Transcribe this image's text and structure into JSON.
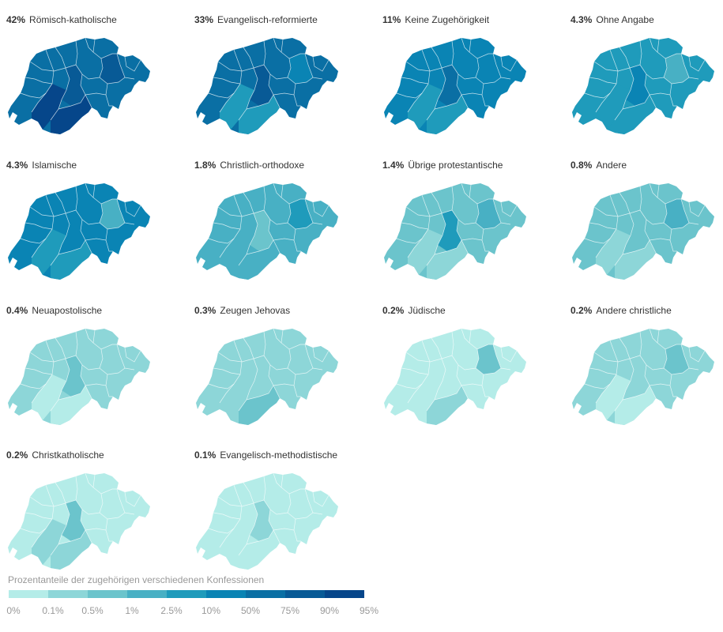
{
  "palette": {
    "c0": "#b4ece8",
    "c1": "#8dd6d8",
    "c2": "#6bc4cc",
    "c3": "#48b0c4",
    "c4": "#1f9bbb",
    "c5": "#0a84b4",
    "c6": "#0a6fa4",
    "c7": "#085a96",
    "c8": "#06468a",
    "c9": "#042f77"
  },
  "panels": [
    {
      "pct": "42%",
      "label": "Römisch-katholische",
      "base": "#0a6fa4",
      "regions": [
        "#06468a",
        "#06468a",
        "#085a96",
        "#085a96"
      ]
    },
    {
      "pct": "33%",
      "label": "Evangelisch-reformierte",
      "base": "#0a6fa4",
      "regions": [
        "#1f9bbb",
        "#1f9bbb",
        "#085a96",
        "#0a84b4"
      ]
    },
    {
      "pct": "11%",
      "label": "Keine Zugehörigkeit",
      "base": "#0a84b4",
      "regions": [
        "#1f9bbb",
        "#1f9bbb",
        "#0a6fa4",
        "#0a84b4"
      ]
    },
    {
      "pct": "4.3%",
      "label": "Ohne Angabe",
      "base": "#1f9bbb",
      "regions": [
        "#1f9bbb",
        "#1f9bbb",
        "#0a84b4",
        "#48b0c4"
      ]
    },
    {
      "pct": "4.3%",
      "label": "Islamische",
      "base": "#0a84b4",
      "regions": [
        "#1f9bbb",
        "#1f9bbb",
        "#0a84b4",
        "#48b0c4"
      ]
    },
    {
      "pct": "1.8%",
      "label": "Christlich-orthodoxe",
      "base": "#48b0c4",
      "regions": [
        "#48b0c4",
        "#48b0c4",
        "#6bc4cc",
        "#1f9bbb"
      ]
    },
    {
      "pct": "1.4%",
      "label": "Übrige protestantische",
      "base": "#6bc4cc",
      "regions": [
        "#8dd6d8",
        "#8dd6d8",
        "#1f9bbb",
        "#48b0c4"
      ]
    },
    {
      "pct": "0.8%",
      "label": "Andere",
      "base": "#6bc4cc",
      "regions": [
        "#8dd6d8",
        "#8dd6d8",
        "#6bc4cc",
        "#48b0c4"
      ]
    },
    {
      "pct": "0.4%",
      "label": "Neuapostolische",
      "base": "#8dd6d8",
      "regions": [
        "#b4ece8",
        "#b4ece8",
        "#6bc4cc",
        "#8dd6d8"
      ]
    },
    {
      "pct": "0.3%",
      "label": "Zeugen Jehovas",
      "base": "#8dd6d8",
      "regions": [
        "#8dd6d8",
        "#6bc4cc",
        "#8dd6d8",
        "#8dd6d8"
      ]
    },
    {
      "pct": "0.2%",
      "label": "Jüdische",
      "base": "#b4ece8",
      "regions": [
        "#b4ece8",
        "#8dd6d8",
        "#b4ece8",
        "#6bc4cc"
      ]
    },
    {
      "pct": "0.2%",
      "label": "Andere christliche",
      "base": "#8dd6d8",
      "regions": [
        "#b4ece8",
        "#b4ece8",
        "#8dd6d8",
        "#6bc4cc"
      ]
    },
    {
      "pct": "0.2%",
      "label": "Christkatholische",
      "base": "#b4ece8",
      "regions": [
        "#8dd6d8",
        "#8dd6d8",
        "#6bc4cc",
        "#b4ece8"
      ]
    },
    {
      "pct": "0.1%",
      "label": "Evangelisch-methodistische",
      "base": "#b4ece8",
      "regions": [
        "#b4ece8",
        "#b4ece8",
        "#8dd6d8",
        "#b4ece8"
      ]
    }
  ],
  "legend": {
    "title": "Prozentanteile der zugehörigen verschiedenen Konfessionen",
    "labels": [
      "0%",
      "0.1%",
      "0.5%",
      "1%",
      "2.5%",
      "10%",
      "50%",
      "75%",
      "90%",
      "95%"
    ]
  }
}
